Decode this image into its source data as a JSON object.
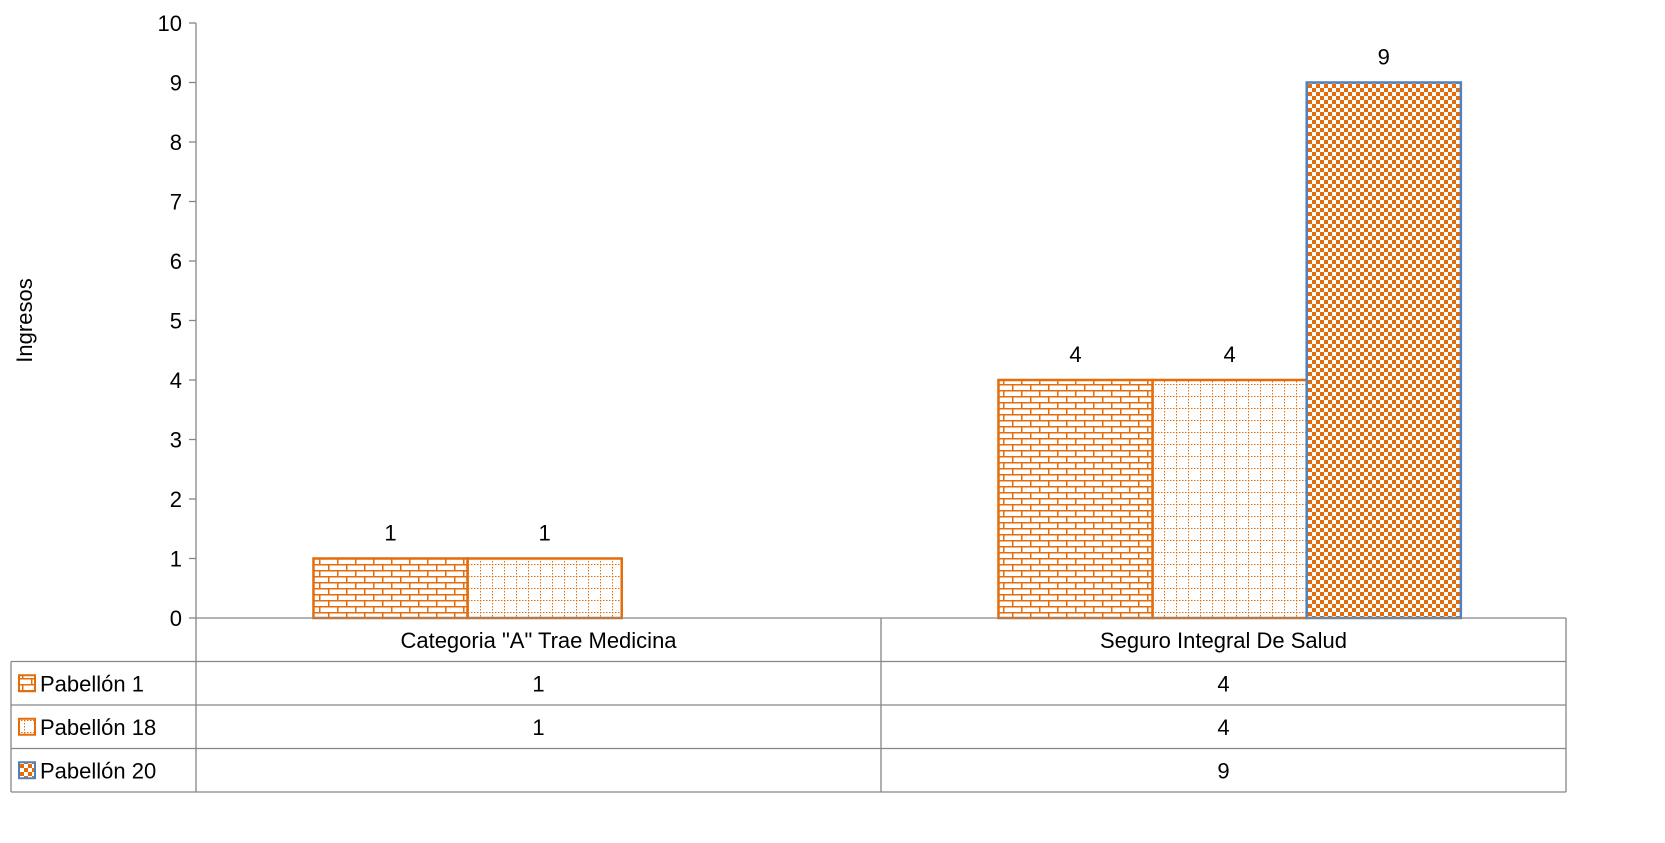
{
  "chart_data": {
    "type": "bar",
    "ylabel": "Ingresos",
    "ylim": [
      0,
      10
    ],
    "yticks": [
      0,
      1,
      2,
      3,
      4,
      5,
      6,
      7,
      8,
      9,
      10
    ],
    "categories": [
      "Categoria \"A\" Trae Medicina",
      "Seguro Integral De Salud"
    ],
    "series": [
      {
        "name": "Pabellón 1",
        "values": [
          1,
          4
        ],
        "pattern": "brick",
        "color": "#E46C0A",
        "border": "#E46C0A"
      },
      {
        "name": "Pabellón 18",
        "values": [
          1,
          4
        ],
        "pattern": "dotted-grid",
        "color": "#E46C0A",
        "border": "#E46C0A"
      },
      {
        "name": "Pabellón 20",
        "values": [
          null,
          9
        ],
        "pattern": "checker",
        "color": "#E46C0A",
        "border": "#4F81BD"
      }
    ],
    "data_table": true,
    "grid": false,
    "legend": "data-table"
  }
}
